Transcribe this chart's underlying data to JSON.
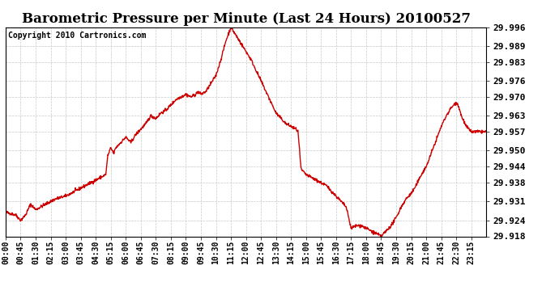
{
  "title": "Barometric Pressure per Minute (Last 24 Hours) 20100527",
  "copyright": "Copyright 2010 Cartronics.com",
  "line_color": "#cc0000",
  "background_color": "#ffffff",
  "grid_color": "#bbbbbb",
  "grid_style": "--",
  "ylim": [
    29.918,
    29.996
  ],
  "yticks": [
    29.918,
    29.924,
    29.931,
    29.938,
    29.944,
    29.95,
    29.957,
    29.963,
    29.97,
    29.976,
    29.983,
    29.989,
    29.996
  ],
  "xtick_labels": [
    "00:00",
    "00:45",
    "01:30",
    "02:15",
    "03:00",
    "03:45",
    "04:30",
    "05:15",
    "06:00",
    "06:45",
    "07:30",
    "08:15",
    "09:00",
    "09:45",
    "10:30",
    "11:15",
    "12:00",
    "12:45",
    "13:30",
    "14:15",
    "15:00",
    "15:45",
    "16:30",
    "17:15",
    "18:00",
    "18:45",
    "19:30",
    "20:15",
    "21:00",
    "21:45",
    "22:30",
    "23:15"
  ],
  "title_fontsize": 12,
  "ytick_fontsize": 8,
  "xtick_fontsize": 7,
  "copyright_fontsize": 7,
  "linewidth": 1.0,
  "keypoints": [
    [
      0.0,
      29.927
    ],
    [
      0.5,
      29.926
    ],
    [
      0.75,
      29.924
    ],
    [
      1.0,
      29.926
    ],
    [
      1.25,
      29.93
    ],
    [
      1.5,
      29.928
    ],
    [
      2.0,
      29.93
    ],
    [
      2.5,
      29.932
    ],
    [
      3.0,
      29.933
    ],
    [
      3.5,
      29.935
    ],
    [
      4.0,
      29.937
    ],
    [
      4.5,
      29.939
    ],
    [
      5.0,
      29.941
    ],
    [
      5.1,
      29.948
    ],
    [
      5.25,
      29.951
    ],
    [
      5.4,
      29.949
    ],
    [
      5.5,
      29.951
    ],
    [
      5.75,
      29.953
    ],
    [
      6.0,
      29.955
    ],
    [
      6.25,
      29.953
    ],
    [
      6.5,
      29.956
    ],
    [
      6.75,
      29.958
    ],
    [
      7.0,
      29.96
    ],
    [
      7.25,
      29.963
    ],
    [
      7.5,
      29.962
    ],
    [
      7.75,
      29.964
    ],
    [
      8.0,
      29.965
    ],
    [
      8.25,
      29.967
    ],
    [
      8.5,
      29.969
    ],
    [
      8.75,
      29.97
    ],
    [
      9.0,
      29.971
    ],
    [
      9.25,
      29.97
    ],
    [
      9.5,
      29.971
    ],
    [
      9.6,
      29.972
    ],
    [
      9.75,
      29.971
    ],
    [
      10.0,
      29.972
    ],
    [
      10.25,
      29.975
    ],
    [
      10.5,
      29.978
    ],
    [
      10.75,
      29.984
    ],
    [
      11.0,
      29.991
    ],
    [
      11.25,
      29.996
    ],
    [
      11.5,
      29.993
    ],
    [
      11.75,
      29.99
    ],
    [
      12.0,
      29.987
    ],
    [
      12.25,
      29.984
    ],
    [
      12.5,
      29.98
    ],
    [
      12.75,
      29.976
    ],
    [
      13.0,
      29.972
    ],
    [
      13.25,
      29.968
    ],
    [
      13.5,
      29.964
    ],
    [
      13.75,
      29.962
    ],
    [
      14.0,
      29.96
    ],
    [
      14.25,
      29.959
    ],
    [
      14.5,
      29.958
    ],
    [
      14.6,
      29.957
    ],
    [
      14.75,
      29.943
    ],
    [
      15.0,
      29.941
    ],
    [
      15.25,
      29.94
    ],
    [
      15.5,
      29.939
    ],
    [
      15.75,
      29.938
    ],
    [
      16.0,
      29.937
    ],
    [
      16.25,
      29.935
    ],
    [
      16.5,
      29.933
    ],
    [
      16.75,
      29.931
    ],
    [
      17.0,
      29.929
    ],
    [
      17.25,
      29.921
    ],
    [
      17.5,
      29.922
    ],
    [
      17.75,
      29.922
    ],
    [
      18.0,
      29.921
    ],
    [
      18.25,
      29.92
    ],
    [
      18.5,
      29.919
    ],
    [
      18.75,
      29.918
    ],
    [
      19.0,
      29.92
    ],
    [
      19.25,
      29.922
    ],
    [
      19.5,
      29.925
    ],
    [
      19.75,
      29.929
    ],
    [
      20.0,
      29.932
    ],
    [
      20.25,
      29.934
    ],
    [
      20.5,
      29.937
    ],
    [
      20.75,
      29.941
    ],
    [
      21.0,
      29.944
    ],
    [
      21.25,
      29.949
    ],
    [
      21.5,
      29.954
    ],
    [
      21.75,
      29.959
    ],
    [
      22.0,
      29.963
    ],
    [
      22.25,
      29.966
    ],
    [
      22.5,
      29.968
    ],
    [
      22.6,
      29.967
    ],
    [
      22.75,
      29.963
    ],
    [
      23.0,
      29.959
    ],
    [
      23.25,
      29.957
    ],
    [
      24.0,
      29.957
    ]
  ]
}
